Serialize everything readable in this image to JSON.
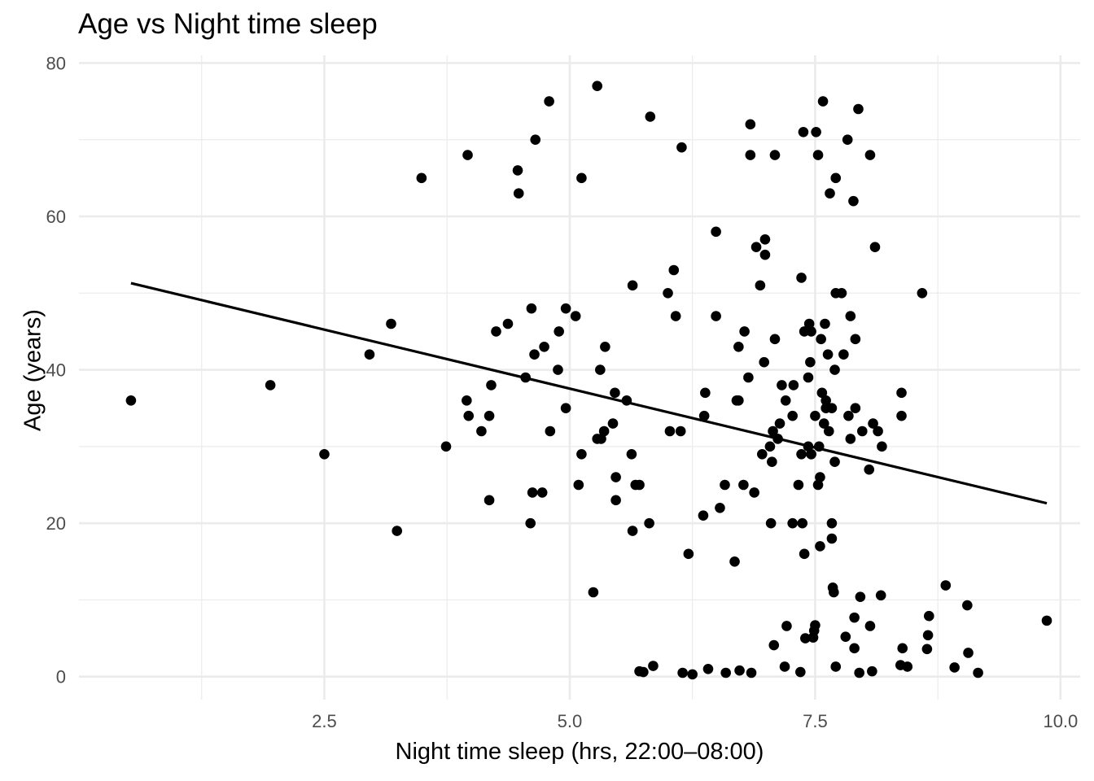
{
  "chart_data": {
    "type": "scatter",
    "title": "Age vs Night time sleep",
    "xlabel": "Night time sleep (hrs, 22:00–08:00)",
    "ylabel": "Age (years)",
    "xlim": [
      0.0,
      10.2
    ],
    "ylim": [
      -3,
      81
    ],
    "x_ticks": [
      2.5,
      5.0,
      7.5,
      10.0
    ],
    "x_tick_labels": [
      "2.5",
      "5.0",
      "7.5",
      "10.0"
    ],
    "y_ticks": [
      0,
      20,
      40,
      60,
      80
    ],
    "y_tick_labels": [
      "0",
      "20",
      "40",
      "60",
      "80"
    ],
    "grid": true,
    "legend": "none",
    "point_color": "#000000",
    "trend_line": {
      "x": [
        0.53,
        9.86
      ],
      "y": [
        51.3,
        22.6
      ]
    },
    "points": [
      {
        "x": 0.53,
        "y": 36
      },
      {
        "x": 1.95,
        "y": 38
      },
      {
        "x": 2.5,
        "y": 29
      },
      {
        "x": 2.96,
        "y": 42
      },
      {
        "x": 3.18,
        "y": 46
      },
      {
        "x": 3.24,
        "y": 19
      },
      {
        "x": 3.49,
        "y": 65
      },
      {
        "x": 3.74,
        "y": 30
      },
      {
        "x": 3.95,
        "y": 36
      },
      {
        "x": 3.97,
        "y": 34
      },
      {
        "x": 3.96,
        "y": 68
      },
      {
        "x": 4.1,
        "y": 32
      },
      {
        "x": 4.18,
        "y": 23
      },
      {
        "x": 4.18,
        "y": 34
      },
      {
        "x": 4.2,
        "y": 38
      },
      {
        "x": 4.25,
        "y": 45
      },
      {
        "x": 4.37,
        "y": 46
      },
      {
        "x": 4.47,
        "y": 66
      },
      {
        "x": 4.48,
        "y": 63
      },
      {
        "x": 4.55,
        "y": 39
      },
      {
        "x": 4.6,
        "y": 20
      },
      {
        "x": 4.62,
        "y": 24
      },
      {
        "x": 4.64,
        "y": 42
      },
      {
        "x": 4.61,
        "y": 48
      },
      {
        "x": 4.65,
        "y": 70
      },
      {
        "x": 4.72,
        "y": 24
      },
      {
        "x": 4.74,
        "y": 43
      },
      {
        "x": 4.8,
        "y": 32
      },
      {
        "x": 4.79,
        "y": 75
      },
      {
        "x": 4.88,
        "y": 40
      },
      {
        "x": 4.89,
        "y": 45
      },
      {
        "x": 4.96,
        "y": 35
      },
      {
        "x": 4.96,
        "y": 48
      },
      {
        "x": 5.06,
        "y": 47
      },
      {
        "x": 5.09,
        "y": 25
      },
      {
        "x": 5.12,
        "y": 29
      },
      {
        "x": 5.12,
        "y": 65
      },
      {
        "x": 5.24,
        "y": 11
      },
      {
        "x": 5.28,
        "y": 31
      },
      {
        "x": 5.28,
        "y": 77
      },
      {
        "x": 5.31,
        "y": 40
      },
      {
        "x": 5.32,
        "y": 31
      },
      {
        "x": 5.35,
        "y": 32
      },
      {
        "x": 5.36,
        "y": 43
      },
      {
        "x": 5.44,
        "y": 33
      },
      {
        "x": 5.46,
        "y": 37
      },
      {
        "x": 5.47,
        "y": 26
      },
      {
        "x": 5.47,
        "y": 23
      },
      {
        "x": 5.58,
        "y": 36
      },
      {
        "x": 5.63,
        "y": 29
      },
      {
        "x": 5.64,
        "y": 51
      },
      {
        "x": 5.64,
        "y": 19
      },
      {
        "x": 5.67,
        "y": 25
      },
      {
        "x": 5.71,
        "y": 25
      },
      {
        "x": 5.71,
        "y": 0.7
      },
      {
        "x": 5.75,
        "y": 0.6
      },
      {
        "x": 5.81,
        "y": 20
      },
      {
        "x": 5.82,
        "y": 73
      },
      {
        "x": 5.85,
        "y": 1.4
      },
      {
        "x": 6.0,
        "y": 50
      },
      {
        "x": 6.02,
        "y": 32
      },
      {
        "x": 6.06,
        "y": 53
      },
      {
        "x": 6.08,
        "y": 47
      },
      {
        "x": 6.13,
        "y": 32
      },
      {
        "x": 6.14,
        "y": 69
      },
      {
        "x": 6.15,
        "y": 0.5
      },
      {
        "x": 6.21,
        "y": 16
      },
      {
        "x": 6.25,
        "y": 0.3
      },
      {
        "x": 6.36,
        "y": 21
      },
      {
        "x": 6.37,
        "y": 34
      },
      {
        "x": 6.38,
        "y": 37
      },
      {
        "x": 6.41,
        "y": 1.0
      },
      {
        "x": 6.49,
        "y": 47
      },
      {
        "x": 6.49,
        "y": 58
      },
      {
        "x": 6.53,
        "y": 22
      },
      {
        "x": 6.58,
        "y": 25
      },
      {
        "x": 6.59,
        "y": 0.5
      },
      {
        "x": 6.68,
        "y": 15
      },
      {
        "x": 6.7,
        "y": 36
      },
      {
        "x": 6.72,
        "y": 36
      },
      {
        "x": 6.72,
        "y": 43
      },
      {
        "x": 6.73,
        "y": 0.8
      },
      {
        "x": 6.77,
        "y": 25
      },
      {
        "x": 6.78,
        "y": 45
      },
      {
        "x": 6.82,
        "y": 39
      },
      {
        "x": 6.84,
        "y": 68
      },
      {
        "x": 6.84,
        "y": 72
      },
      {
        "x": 6.85,
        "y": 0.5
      },
      {
        "x": 6.88,
        "y": 24
      },
      {
        "x": 6.9,
        "y": 56
      },
      {
        "x": 6.94,
        "y": 51
      },
      {
        "x": 6.96,
        "y": 29
      },
      {
        "x": 6.98,
        "y": 41
      },
      {
        "x": 6.99,
        "y": 57
      },
      {
        "x": 6.99,
        "y": 55
      },
      {
        "x": 7.04,
        "y": 30
      },
      {
        "x": 7.05,
        "y": 20
      },
      {
        "x": 7.06,
        "y": 28
      },
      {
        "x": 7.07,
        "y": 32
      },
      {
        "x": 7.08,
        "y": 4.1
      },
      {
        "x": 7.09,
        "y": 44
      },
      {
        "x": 7.09,
        "y": 68
      },
      {
        "x": 7.12,
        "y": 31
      },
      {
        "x": 7.14,
        "y": 33
      },
      {
        "x": 7.16,
        "y": 38
      },
      {
        "x": 7.19,
        "y": 1.3
      },
      {
        "x": 7.2,
        "y": 36
      },
      {
        "x": 7.21,
        "y": 6.6
      },
      {
        "x": 7.27,
        "y": 20
      },
      {
        "x": 7.27,
        "y": 34
      },
      {
        "x": 7.28,
        "y": 38
      },
      {
        "x": 7.33,
        "y": 25
      },
      {
        "x": 7.35,
        "y": 0.6
      },
      {
        "x": 7.36,
        "y": 29
      },
      {
        "x": 7.36,
        "y": 52
      },
      {
        "x": 7.37,
        "y": 20
      },
      {
        "x": 7.38,
        "y": 71
      },
      {
        "x": 7.39,
        "y": 16
      },
      {
        "x": 7.39,
        "y": 45
      },
      {
        "x": 7.4,
        "y": 5.0
      },
      {
        "x": 7.43,
        "y": 39
      },
      {
        "x": 7.43,
        "y": 30
      },
      {
        "x": 7.44,
        "y": 46
      },
      {
        "x": 7.45,
        "y": 41
      },
      {
        "x": 7.46,
        "y": 29
      },
      {
        "x": 7.46,
        "y": 45
      },
      {
        "x": 7.46,
        "y": 29
      },
      {
        "x": 7.48,
        "y": 5.1
      },
      {
        "x": 7.49,
        "y": 6.0
      },
      {
        "x": 7.5,
        "y": 6.7
      },
      {
        "x": 7.5,
        "y": 34
      },
      {
        "x": 7.51,
        "y": 71
      },
      {
        "x": 7.53,
        "y": 25
      },
      {
        "x": 7.53,
        "y": 68
      },
      {
        "x": 7.54,
        "y": 30
      },
      {
        "x": 7.55,
        "y": 26
      },
      {
        "x": 7.55,
        "y": 17
      },
      {
        "x": 7.56,
        "y": 44
      },
      {
        "x": 7.57,
        "y": 37
      },
      {
        "x": 7.58,
        "y": 75
      },
      {
        "x": 7.59,
        "y": 33
      },
      {
        "x": 7.6,
        "y": 46
      },
      {
        "x": 7.61,
        "y": 35
      },
      {
        "x": 7.61,
        "y": 36
      },
      {
        "x": 7.63,
        "y": 42
      },
      {
        "x": 7.64,
        "y": 32
      },
      {
        "x": 7.65,
        "y": 63
      },
      {
        "x": 7.67,
        "y": 35
      },
      {
        "x": 7.67,
        "y": 18
      },
      {
        "x": 7.67,
        "y": 20
      },
      {
        "x": 7.68,
        "y": 11.6
      },
      {
        "x": 7.69,
        "y": 11.0
      },
      {
        "x": 7.7,
        "y": 40
      },
      {
        "x": 7.7,
        "y": 28
      },
      {
        "x": 7.71,
        "y": 50
      },
      {
        "x": 7.71,
        "y": 65
      },
      {
        "x": 7.71,
        "y": 1.3
      },
      {
        "x": 7.77,
        "y": 50
      },
      {
        "x": 7.79,
        "y": 42
      },
      {
        "x": 7.81,
        "y": 5.2
      },
      {
        "x": 7.83,
        "y": 70
      },
      {
        "x": 7.84,
        "y": 34
      },
      {
        "x": 7.86,
        "y": 47
      },
      {
        "x": 7.86,
        "y": 31
      },
      {
        "x": 7.89,
        "y": 62
      },
      {
        "x": 7.9,
        "y": 7.7
      },
      {
        "x": 7.9,
        "y": 3.7
      },
      {
        "x": 7.91,
        "y": 35
      },
      {
        "x": 7.91,
        "y": 44
      },
      {
        "x": 7.94,
        "y": 74
      },
      {
        "x": 7.95,
        "y": 0.5
      },
      {
        "x": 7.96,
        "y": 10.4
      },
      {
        "x": 7.98,
        "y": 32
      },
      {
        "x": 8.05,
        "y": 27
      },
      {
        "x": 8.06,
        "y": 6.6
      },
      {
        "x": 8.06,
        "y": 68
      },
      {
        "x": 8.08,
        "y": 0.7
      },
      {
        "x": 8.09,
        "y": 33
      },
      {
        "x": 8.11,
        "y": 56
      },
      {
        "x": 8.14,
        "y": 32
      },
      {
        "x": 8.17,
        "y": 10.6
      },
      {
        "x": 8.18,
        "y": 30
      },
      {
        "x": 8.37,
        "y": 1.5
      },
      {
        "x": 8.38,
        "y": 34
      },
      {
        "x": 8.38,
        "y": 37
      },
      {
        "x": 8.39,
        "y": 3.7
      },
      {
        "x": 8.44,
        "y": 1.3
      },
      {
        "x": 8.59,
        "y": 50
      },
      {
        "x": 8.64,
        "y": 3.6
      },
      {
        "x": 8.65,
        "y": 5.4
      },
      {
        "x": 8.66,
        "y": 7.9
      },
      {
        "x": 8.83,
        "y": 11.9
      },
      {
        "x": 8.92,
        "y": 1.2
      },
      {
        "x": 9.05,
        "y": 9.3
      },
      {
        "x": 9.06,
        "y": 3.1
      },
      {
        "x": 9.16,
        "y": 0.5
      },
      {
        "x": 9.86,
        "y": 7.3
      }
    ]
  }
}
